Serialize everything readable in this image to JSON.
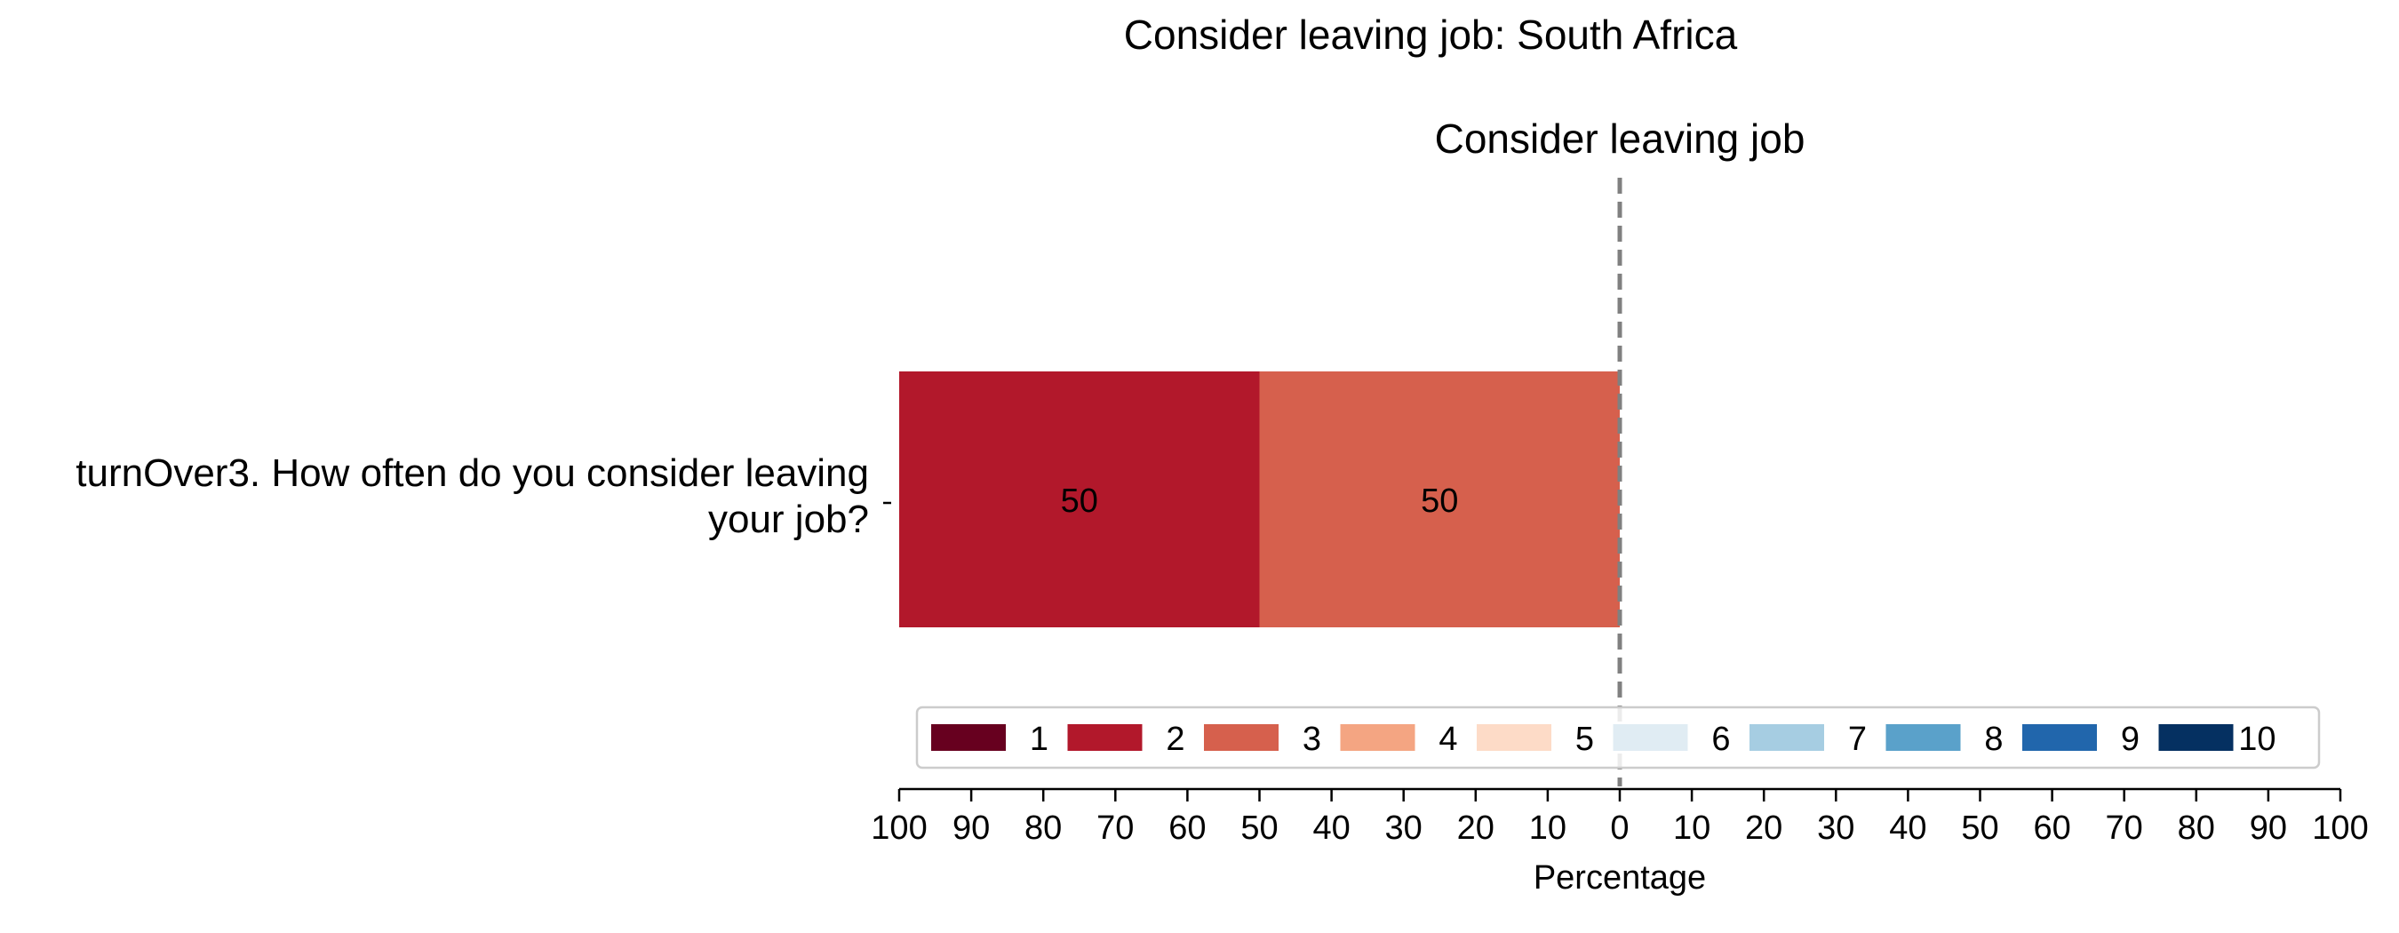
{
  "chart_data": {
    "type": "bar",
    "orientation": "horizontal",
    "stacked": "diverging",
    "title": "Consider leaving job: South Africa",
    "subtitle": "Consider leaving job",
    "xlabel": "Percentage",
    "xlim": [
      -100,
      100
    ],
    "x_ticks": [
      -100,
      -90,
      -80,
      -70,
      -60,
      -50,
      -40,
      -30,
      -20,
      -10,
      0,
      10,
      20,
      30,
      40,
      50,
      60,
      70,
      80,
      90,
      100
    ],
    "x_tick_labels": [
      "100",
      "90",
      "80",
      "70",
      "60",
      "50",
      "40",
      "30",
      "20",
      "10",
      "0",
      "10",
      "20",
      "30",
      "40",
      "50",
      "60",
      "70",
      "80",
      "90",
      "100"
    ],
    "categories": [
      "turnOver3. How often do you consider leaving your job?"
    ],
    "category_label_lines": [
      [
        "turnOver3. How often do you consider leaving",
        "your job?"
      ]
    ],
    "center_line": {
      "x": 0,
      "style": "dashed",
      "color": "#808080"
    },
    "legend_position": "bottom-inside",
    "series": [
      {
        "name": "1",
        "color": "#67001f",
        "values": [
          0
        ]
      },
      {
        "name": "2",
        "color": "#b2182b",
        "values": [
          50
        ]
      },
      {
        "name": "3",
        "color": "#d6604d",
        "values": [
          50
        ]
      },
      {
        "name": "4",
        "color": "#f4a582",
        "values": [
          0
        ]
      },
      {
        "name": "5",
        "color": "#fddbc7",
        "values": [
          0
        ]
      },
      {
        "name": "6",
        "color": "#e0ecf3",
        "values": [
          0
        ]
      },
      {
        "name": "7",
        "color": "#a6cde2",
        "values": [
          0
        ]
      },
      {
        "name": "8",
        "color": "#5aa1ca",
        "values": [
          0
        ]
      },
      {
        "name": "9",
        "color": "#2166ac",
        "values": [
          0
        ]
      },
      {
        "name": "10",
        "color": "#053061",
        "values": [
          0
        ]
      }
    ],
    "negative_series": [
      "1",
      "2",
      "3",
      "4",
      "5"
    ],
    "data_labels": [
      {
        "series": "2",
        "category_index": 0,
        "text": "50"
      },
      {
        "series": "3",
        "category_index": 0,
        "text": "50"
      }
    ]
  }
}
